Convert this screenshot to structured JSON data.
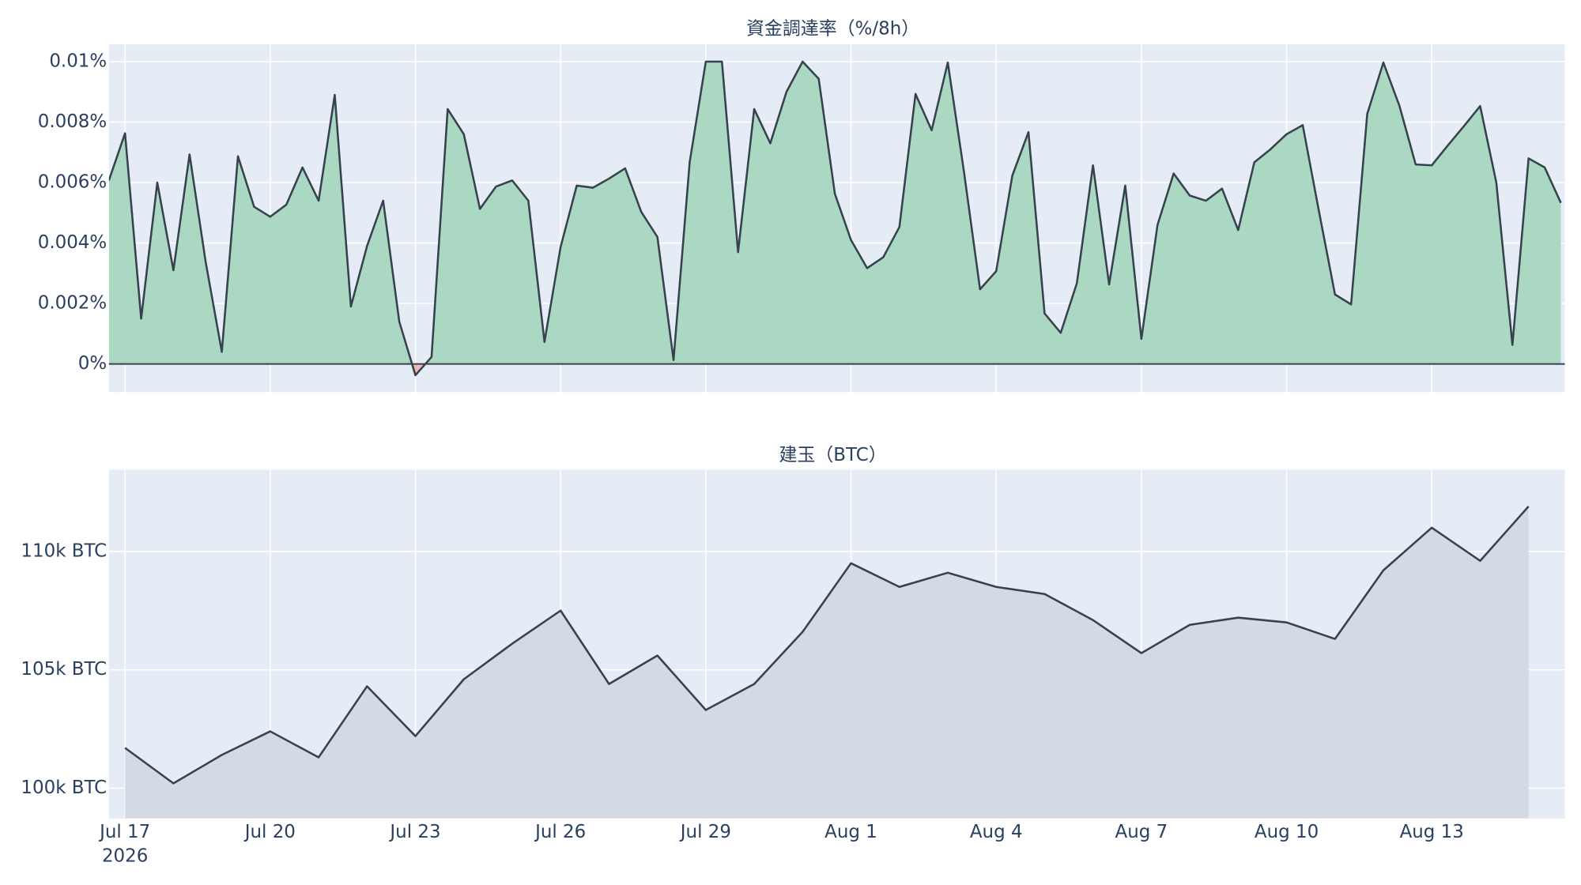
{
  "chart_data": [
    {
      "type": "area",
      "title": "資金調達率（%/8h）",
      "x": [
        "2026-07-16T16:00",
        "2026-07-17T00:00",
        "2026-07-17T08:00",
        "2026-07-17T16:00",
        "2026-07-18T00:00",
        "2026-07-18T08:00",
        "2026-07-18T16:00",
        "2026-07-19T00:00",
        "2026-07-19T08:00",
        "2026-07-19T16:00",
        "2026-07-20T00:00",
        "2026-07-20T08:00",
        "2026-07-20T16:00",
        "2026-07-21T00:00",
        "2026-07-21T08:00",
        "2026-07-21T16:00",
        "2026-07-22T00:00",
        "2026-07-22T08:00",
        "2026-07-22T16:00",
        "2026-07-23T00:00",
        "2026-07-23T08:00",
        "2026-07-23T16:00",
        "2026-07-24T00:00",
        "2026-07-24T08:00",
        "2026-07-24T16:00",
        "2026-07-25T00:00",
        "2026-07-25T08:00",
        "2026-07-25T16:00",
        "2026-07-26T00:00",
        "2026-07-26T08:00",
        "2026-07-26T16:00",
        "2026-07-27T00:00",
        "2026-07-27T08:00",
        "2026-07-27T16:00",
        "2026-07-28T00:00",
        "2026-07-28T08:00",
        "2026-07-28T16:00",
        "2026-07-29T00:00",
        "2026-07-29T08:00",
        "2026-07-29T16:00",
        "2026-07-30T00:00",
        "2026-07-30T08:00",
        "2026-07-30T16:00",
        "2026-07-31T00:00",
        "2026-07-31T08:00",
        "2026-07-31T16:00",
        "2026-08-01T00:00",
        "2026-08-01T08:00",
        "2026-08-01T16:00",
        "2026-08-02T00:00",
        "2026-08-02T08:00",
        "2026-08-02T16:00",
        "2026-08-03T00:00",
        "2026-08-03T08:00",
        "2026-08-03T16:00",
        "2026-08-04T00:00",
        "2026-08-04T08:00",
        "2026-08-04T16:00",
        "2026-08-05T00:00",
        "2026-08-05T08:00",
        "2026-08-05T16:00",
        "2026-08-06T00:00",
        "2026-08-06T08:00",
        "2026-08-06T16:00",
        "2026-08-07T00:00",
        "2026-08-07T08:00",
        "2026-08-07T16:00",
        "2026-08-08T00:00",
        "2026-08-08T08:00",
        "2026-08-08T16:00",
        "2026-08-09T00:00",
        "2026-08-09T08:00",
        "2026-08-09T16:00",
        "2026-08-10T00:00",
        "2026-08-10T08:00",
        "2026-08-10T16:00",
        "2026-08-11T00:00",
        "2026-08-11T08:00",
        "2026-08-11T16:00",
        "2026-08-12T00:00",
        "2026-08-12T08:00",
        "2026-08-12T16:00",
        "2026-08-13T00:00",
        "2026-08-13T08:00",
        "2026-08-13T16:00",
        "2026-08-14T00:00",
        "2026-08-14T08:00",
        "2026-08-14T16:00",
        "2026-08-15T00:00",
        "2026-08-15T08:00",
        "2026-08-15T16:00"
      ],
      "values": [
        0.00607,
        0.00763,
        0.0015,
        0.006,
        0.0031,
        0.00693,
        0.00337,
        0.0004,
        0.00687,
        0.0052,
        0.00487,
        0.00527,
        0.0065,
        0.0054,
        0.0089,
        0.0019,
        0.0039,
        0.0054,
        0.0014,
        -0.00037,
        0.00023,
        0.00843,
        0.0076,
        0.00513,
        0.00587,
        0.00607,
        0.0054,
        0.00073,
        0.00387,
        0.0059,
        0.00583,
        0.00613,
        0.00647,
        0.00503,
        0.0042,
        0.00013,
        0.00667,
        0.01,
        0.01,
        0.0037,
        0.00843,
        0.0073,
        0.009,
        0.01,
        0.00943,
        0.00563,
        0.0041,
        0.00317,
        0.00353,
        0.00453,
        0.00893,
        0.00773,
        0.00997,
        0.00637,
        0.00247,
        0.00307,
        0.00623,
        0.00767,
        0.00167,
        0.00103,
        0.00267,
        0.00657,
        0.00263,
        0.0059,
        0.00083,
        0.0046,
        0.0063,
        0.00557,
        0.0054,
        0.0058,
        0.00443,
        0.00667,
        0.0071,
        0.0076,
        0.0079,
        0.00507,
        0.0023,
        0.00197,
        0.00827,
        0.00997,
        0.00853,
        0.0066,
        0.00657,
        0.00723,
        0.00787,
        0.00853,
        0.006,
        0.00063,
        0.0068,
        0.0065,
        0.00533
      ],
      "line_color": "#36424d",
      "color": "#abd8c3",
      "negative_color": "#f2b8b8",
      "xlim": [
        "2026-07-16T16:00",
        "2026-08-15T18:00"
      ],
      "xticks": [
        "2026-07-17",
        "2026-07-20",
        "2026-07-23",
        "2026-07-26",
        "2026-07-29",
        "2026-08-01",
        "2026-08-04",
        "2026-08-07",
        "2026-08-10",
        "2026-08-13"
      ],
      "ylim": [
        -0.00093,
        0.01057
      ],
      "yticks": [
        {
          "value": 0,
          "label": "0%"
        },
        {
          "value": 0.002,
          "label": "0.002%"
        },
        {
          "value": 0.004,
          "label": "0.004%"
        },
        {
          "value": 0.006,
          "label": "0.006%"
        },
        {
          "value": 0.008,
          "label": "0.008%"
        },
        {
          "value": 0.01,
          "label": "0.01%"
        }
      ],
      "grid": true,
      "zero_line": true
    },
    {
      "type": "area",
      "title": "建玉（BTC）",
      "x": [
        "2026-07-17",
        "2026-07-18",
        "2026-07-19",
        "2026-07-20",
        "2026-07-21",
        "2026-07-22",
        "2026-07-23",
        "2026-07-24",
        "2026-07-25",
        "2026-07-26",
        "2026-07-27",
        "2026-07-28",
        "2026-07-29",
        "2026-07-30",
        "2026-07-31",
        "2026-08-01",
        "2026-08-02",
        "2026-08-03",
        "2026-08-04",
        "2026-08-05",
        "2026-08-06",
        "2026-08-07",
        "2026-08-08",
        "2026-08-09",
        "2026-08-10",
        "2026-08-11",
        "2026-08-12",
        "2026-08-13",
        "2026-08-14",
        "2026-08-15"
      ],
      "values": [
        101700,
        100200,
        101400,
        102400,
        101300,
        104300,
        102200,
        104600,
        106100,
        107500,
        104400,
        105600,
        103300,
        104400,
        106600,
        109500,
        108500,
        109100,
        108500,
        108200,
        107100,
        105700,
        106900,
        107200,
        107000,
        106300,
        109200,
        111000,
        109600,
        111900
      ],
      "line_color": "#36424d",
      "color": "#d3dae3",
      "xlim": [
        "2026-07-16T16:00",
        "2026-08-15T18:00"
      ],
      "xticks": [
        {
          "value": "2026-07-17",
          "label": "Jul 17"
        },
        {
          "value": "2026-07-20",
          "label": "Jul 20"
        },
        {
          "value": "2026-07-23",
          "label": "Jul 23"
        },
        {
          "value": "2026-07-26",
          "label": "Jul 26"
        },
        {
          "value": "2026-07-29",
          "label": "Jul 29"
        },
        {
          "value": "2026-08-01",
          "label": "Aug 1"
        },
        {
          "value": "2026-08-04",
          "label": "Aug 4"
        },
        {
          "value": "2026-08-07",
          "label": "Aug 7"
        },
        {
          "value": "2026-08-10",
          "label": "Aug 10"
        },
        {
          "value": "2026-08-13",
          "label": "Aug 13"
        }
      ],
      "year_label": "2026",
      "ylim": [
        98720,
        113450
      ],
      "yticks": [
        {
          "value": 100000,
          "label": "100k BTC"
        },
        {
          "value": 105000,
          "label": "105k BTC"
        },
        {
          "value": 110000,
          "label": "110k BTC"
        }
      ],
      "grid": true
    }
  ]
}
